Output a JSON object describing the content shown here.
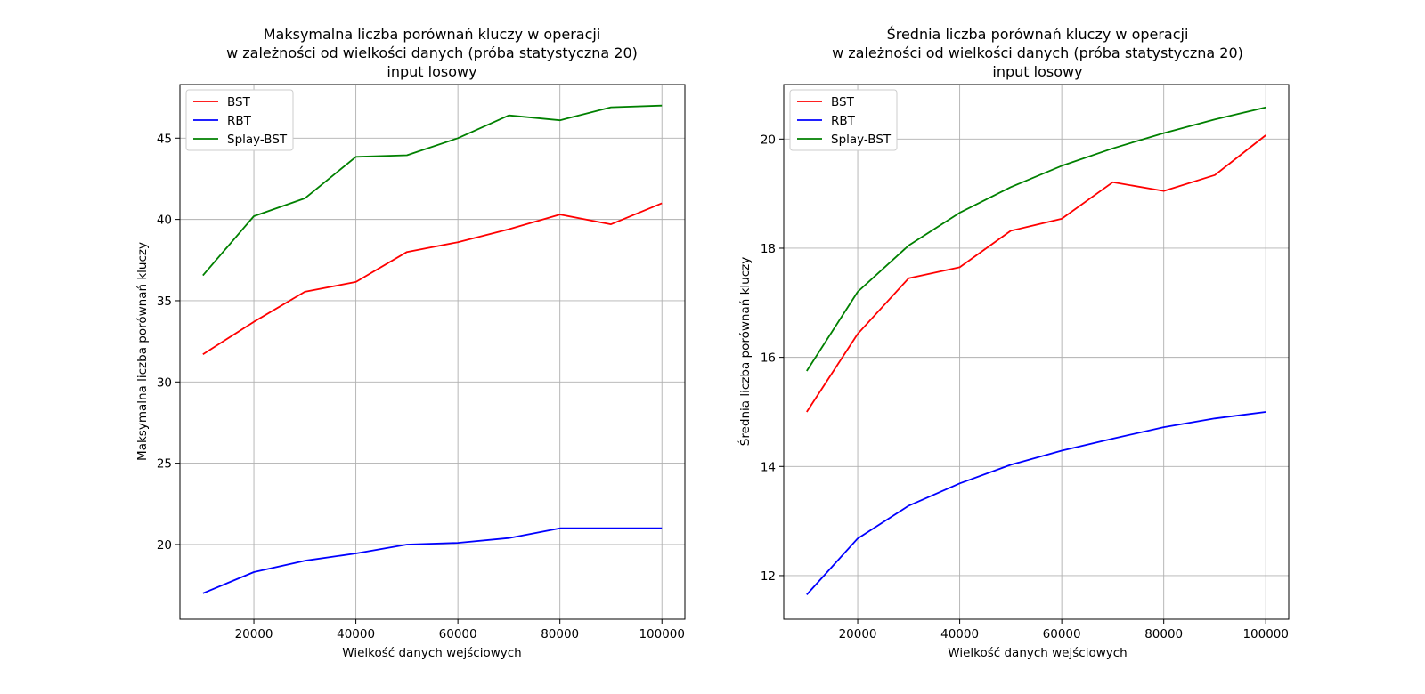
{
  "chart_data": [
    {
      "type": "line",
      "title": [
        "Maksymalna liczba porównań kluczy w operacji",
        "w zależności od wielkości danych (próba statystyczna 20)",
        "input losowy"
      ],
      "xlabel": "Wielkość danych wejściowych",
      "ylabel": "Maksymalna liczba porównań kluczy",
      "xlim": [
        5500,
        104500
      ],
      "ylim": [
        15.4,
        48.3
      ],
      "xticks": [
        20000,
        40000,
        60000,
        80000,
        100000
      ],
      "yticks": [
        20,
        25,
        30,
        35,
        40,
        45
      ],
      "grid": true,
      "legend": "upper-left",
      "x": [
        10000,
        20000,
        30000,
        40000,
        50000,
        60000,
        70000,
        80000,
        90000,
        100000
      ],
      "series": [
        {
          "name": "BST",
          "color": "#ff0000",
          "values": [
            31.7,
            33.7,
            35.55,
            36.15,
            38.0,
            38.6,
            39.4,
            40.3,
            39.7,
            41.0
          ]
        },
        {
          "name": "RBT",
          "color": "#0000ff",
          "values": [
            17.0,
            18.3,
            19.0,
            19.45,
            20.0,
            20.1,
            20.4,
            21.0,
            21.0,
            21.0
          ]
        },
        {
          "name": "Splay-BST",
          "color": "#008000",
          "values": [
            36.55,
            40.2,
            41.3,
            43.85,
            43.95,
            45.0,
            46.4,
            46.1,
            46.9,
            47.0
          ]
        }
      ]
    },
    {
      "type": "line",
      "title": [
        "Średnia liczba porównań kluczy w operacji",
        "w zależności od wielkości danych (próba statystyczna 20)",
        "input losowy"
      ],
      "xlabel": "Wielkość danych wejściowych",
      "ylabel": "Średnia liczba porównań kluczy",
      "xlim": [
        5500,
        104500
      ],
      "ylim": [
        11.2,
        21.0
      ],
      "xticks": [
        20000,
        40000,
        60000,
        80000,
        100000
      ],
      "yticks": [
        12,
        14,
        16,
        18,
        20
      ],
      "grid": true,
      "legend": "upper-left",
      "x": [
        10000,
        20000,
        30000,
        40000,
        50000,
        60000,
        70000,
        80000,
        90000,
        100000
      ],
      "series": [
        {
          "name": "BST",
          "color": "#ff0000",
          "values": [
            15.0,
            16.43,
            17.45,
            17.65,
            18.32,
            18.54,
            19.21,
            19.05,
            19.34,
            20.07
          ]
        },
        {
          "name": "RBT",
          "color": "#0000ff",
          "values": [
            11.65,
            12.68,
            13.28,
            13.69,
            14.03,
            14.29,
            14.51,
            14.72,
            14.88,
            15.0
          ]
        },
        {
          "name": "Splay-BST",
          "color": "#008000",
          "values": [
            15.75,
            17.2,
            18.05,
            18.65,
            19.12,
            19.51,
            19.83,
            20.11,
            20.36,
            20.58
          ]
        }
      ]
    }
  ]
}
